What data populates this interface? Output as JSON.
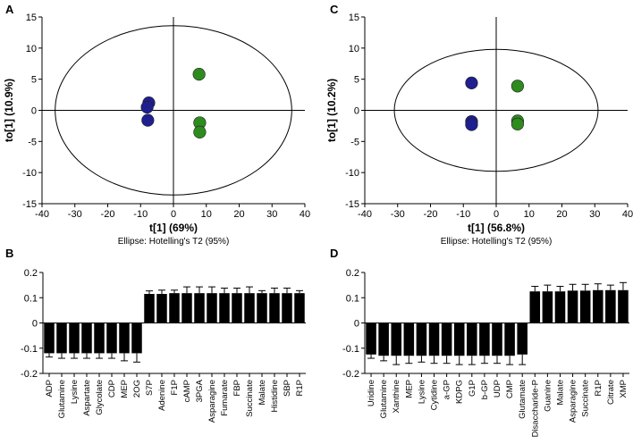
{
  "chart_data": [
    {
      "panel": "A",
      "type": "scatter",
      "xlabel": "t[1] (69%)",
      "ylabel": "to[1] (10.9%)",
      "caption": "Ellipse: Hotelling's T2 (95%)",
      "xlim": [
        -40,
        40
      ],
      "ylim": [
        -15,
        15
      ],
      "xticks": [
        -40,
        -30,
        -20,
        -10,
        0,
        10,
        20,
        30,
        40
      ],
      "yticks": [
        -15,
        -10,
        -5,
        0,
        5,
        10,
        15
      ],
      "ellipse": {
        "cx": 0,
        "cy": 0,
        "rx": 36,
        "ry": 13.6
      },
      "series": [
        {
          "name": "group-blue",
          "color": "#1f1f8f",
          "points": [
            [
              -7.5,
              1.2
            ],
            [
              -8.0,
              0.5
            ],
            [
              -7.8,
              -1.6
            ]
          ]
        },
        {
          "name": "group-green",
          "color": "#2e8b1e",
          "points": [
            [
              7.8,
              5.8
            ],
            [
              8.0,
              -2.0
            ],
            [
              8.0,
              -3.5
            ]
          ]
        }
      ]
    },
    {
      "panel": "C",
      "type": "scatter",
      "xlabel": "t[1] (56.8%)",
      "ylabel": "to[1] (10.2%)",
      "caption": "Ellipse: Hotelling's T2 (95%)",
      "xlim": [
        -40,
        40
      ],
      "ylim": [
        -15,
        15
      ],
      "xticks": [
        -40,
        -30,
        -20,
        -10,
        0,
        10,
        20,
        30,
        40
      ],
      "yticks": [
        -15,
        -10,
        -5,
        0,
        5,
        10,
        15
      ],
      "ellipse": {
        "cx": 0,
        "cy": 0,
        "rx": 31,
        "ry": 9.8
      },
      "series": [
        {
          "name": "group-blue",
          "color": "#1f1f8f",
          "points": [
            [
              -7.5,
              4.4
            ],
            [
              -7.5,
              -1.8
            ],
            [
              -7.5,
              -2.3
            ]
          ]
        },
        {
          "name": "group-green",
          "color": "#2e8b1e",
          "points": [
            [
              6.5,
              3.9
            ],
            [
              6.5,
              -1.7
            ],
            [
              6.5,
              -2.2
            ]
          ]
        }
      ]
    },
    {
      "panel": "B",
      "type": "bar",
      "ylim": [
        -0.2,
        0.2
      ],
      "yticks": [
        -0.2,
        -0.1,
        0.0,
        0.1,
        0.2
      ],
      "color": "#000000",
      "categories": [
        "ADP",
        "Glutamine",
        "Lysine",
        "Aspartate",
        "Glycolate",
        "CDP",
        "MEP",
        "2OG",
        "S7P",
        "Adenine",
        "F1P",
        "cAMP",
        "3PGA",
        "Asparagine",
        "Fumarate",
        "FBP",
        "Succinate",
        "Malate",
        "Histidine",
        "SBP",
        "R1P"
      ],
      "values": [
        -0.12,
        -0.12,
        -0.12,
        -0.12,
        -0.12,
        -0.12,
        -0.12,
        -0.12,
        0.115,
        0.115,
        0.118,
        0.118,
        0.118,
        0.118,
        0.118,
        0.118,
        0.118,
        0.118,
        0.118,
        0.118,
        0.118
      ],
      "errors": [
        0.015,
        0.02,
        0.02,
        0.02,
        0.02,
        0.02,
        0.03,
        0.035,
        0.012,
        0.015,
        0.012,
        0.025,
        0.025,
        0.025,
        0.02,
        0.02,
        0.025,
        0.01,
        0.02,
        0.02,
        0.01
      ]
    },
    {
      "panel": "D",
      "type": "bar",
      "ylim": [
        -0.2,
        0.2
      ],
      "yticks": [
        -0.2,
        -0.1,
        0.0,
        0.1,
        0.2
      ],
      "color": "#000000",
      "categories": [
        "Uridine",
        "Glutamine",
        "Xanthine",
        "MEP",
        "Lysine",
        "Cytidine",
        "a-GP",
        "KDPG",
        "G1P",
        "b-GP",
        "UDP",
        "CMP",
        "Glutamate",
        "Disaccharide-P",
        "Guanine",
        "Malate",
        "Asparagine",
        "Succinate",
        "R1P",
        "Citrate",
        "XMP"
      ],
      "values": [
        -0.125,
        -0.13,
        -0.13,
        -0.13,
        -0.13,
        -0.13,
        -0.13,
        -0.13,
        -0.13,
        -0.13,
        -0.13,
        -0.13,
        -0.125,
        0.125,
        0.125,
        0.125,
        0.128,
        0.128,
        0.13,
        0.13,
        0.13
      ],
      "errors": [
        0.015,
        0.02,
        0.035,
        0.03,
        0.025,
        0.03,
        0.03,
        0.035,
        0.035,
        0.03,
        0.03,
        0.035,
        0.04,
        0.02,
        0.025,
        0.02,
        0.025,
        0.025,
        0.025,
        0.02,
        0.03
      ]
    }
  ]
}
